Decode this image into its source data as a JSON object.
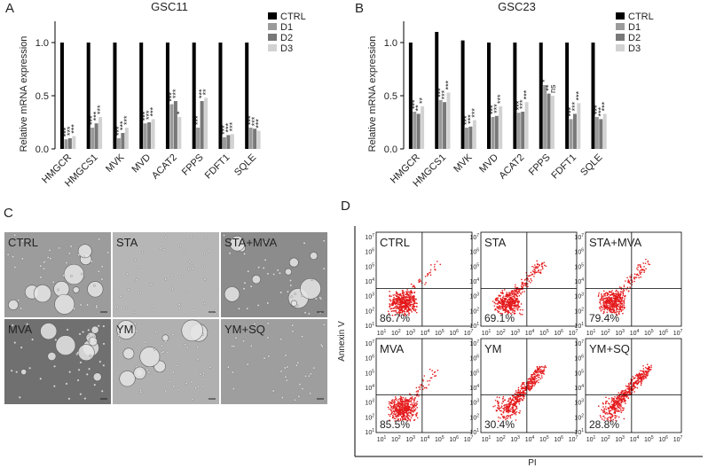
{
  "chart_data": [
    {
      "type": "bar",
      "title": "GSC11",
      "ylabel": "Relative mRNA expression",
      "categories": [
        "HMGCR",
        "HMGCS1",
        "MVK",
        "MVD",
        "ACAT2",
        "FPPS",
        "FDFT1",
        "SQLE"
      ],
      "series": [
        {
          "name": "CTRL",
          "color": "#000000",
          "values": [
            1.0,
            1.0,
            1.0,
            1.0,
            1.0,
            1.0,
            1.0,
            1.0
          ]
        },
        {
          "name": "D1",
          "color": "#9a9a9a",
          "values": [
            0.09,
            0.2,
            0.1,
            0.24,
            0.42,
            0.2,
            0.11,
            0.2
          ],
          "significance": [
            "***",
            "***",
            "***",
            "***",
            "***",
            "***",
            "***",
            "***"
          ]
        },
        {
          "name": "D2",
          "color": "#787878",
          "values": [
            0.1,
            0.24,
            0.15,
            0.25,
            0.45,
            0.45,
            0.13,
            0.19
          ],
          "significance": [
            "***",
            "***",
            "***",
            "***",
            "***",
            "***",
            "***",
            "***"
          ]
        },
        {
          "name": "D3",
          "color": "#d2d2d2",
          "values": [
            0.12,
            0.3,
            0.2,
            0.28,
            0.3,
            0.48,
            0.14,
            0.17
          ],
          "significance": [
            "***",
            "***",
            "***",
            "***",
            "*",
            "**",
            "***",
            "***"
          ]
        }
      ],
      "ylim": [
        0,
        1.2
      ],
      "yticks": [
        {
          "value": 0,
          "label": "0.0"
        },
        {
          "value": 0.5,
          "label": "0.5"
        },
        {
          "value": 1,
          "label": "1.0"
        }
      ]
    },
    {
      "type": "bar",
      "title": "GSC23",
      "ylabel": "Relative mRNA expression",
      "categories": [
        "HMGCR",
        "HMGCS1",
        "MVK",
        "MVD",
        "ACAT2",
        "FPPS",
        "FDFT1",
        "SQLE"
      ],
      "series": [
        {
          "name": "CTRL",
          "color": "#000000",
          "values": [
            1.0,
            1.1,
            1.02,
            1.0,
            1.0,
            1.0,
            1.0,
            1.0
          ]
        },
        {
          "name": "D1",
          "color": "#9a9a9a",
          "values": [
            0.35,
            0.46,
            0.2,
            0.3,
            0.34,
            0.6,
            0.28,
            0.3
          ],
          "significance": [
            "***",
            "***",
            "***",
            "***",
            "***",
            "*",
            "***",
            "***"
          ]
        },
        {
          "name": "D2",
          "color": "#787878",
          "values": [
            0.33,
            0.44,
            0.21,
            0.31,
            0.35,
            0.52,
            0.33,
            0.28
          ],
          "significance": [
            "**",
            "***",
            "***",
            "***",
            "***",
            "**",
            "***",
            "***"
          ]
        },
        {
          "name": "D3",
          "color": "#d2d2d2",
          "values": [
            0.4,
            0.53,
            0.27,
            0.4,
            0.44,
            0.5,
            0.43,
            0.33
          ],
          "significance": [
            "**",
            "***",
            "***",
            "***",
            "***",
            "ns",
            "***",
            "***"
          ]
        }
      ],
      "ylim": [
        0,
        1.2
      ],
      "yticks": [
        {
          "value": 0,
          "label": "0.0"
        },
        {
          "value": 0.5,
          "label": "0.5"
        },
        {
          "value": 1,
          "label": "1.0"
        }
      ]
    }
  ],
  "panel_labels": [
    "A",
    "B",
    "C",
    "D"
  ],
  "micrographs": {
    "labels": [
      "CTRL",
      "STA",
      "STA+MVA",
      "MVA",
      "YM",
      "YM+SQ"
    ]
  },
  "flow": {
    "xlabel": "PI",
    "ylabel": "Annexin V",
    "tick_base": "10",
    "tick_exponents": [
      "1",
      "2",
      "3",
      "4",
      "5",
      "6",
      "7"
    ],
    "plots": [
      {
        "label": "CTRL",
        "percent": "86.7%"
      },
      {
        "label": "STA",
        "percent": "69.1%"
      },
      {
        "label": "STA+MVA",
        "percent": "79.4%"
      },
      {
        "label": "MVA",
        "percent": "85.5%"
      },
      {
        "label": "YM",
        "percent": "30.4%"
      },
      {
        "label": "YM+SQ",
        "percent": "28.8%"
      }
    ]
  }
}
